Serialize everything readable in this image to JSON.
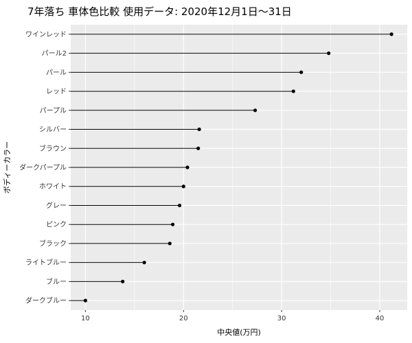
{
  "chart_data": {
    "type": "lollipop",
    "title": "7年落ち 車体色比較 使用データ: 2020年12月1日～31日",
    "xlabel": "中央値(万円)",
    "ylabel": "ボディーカラー",
    "xlim": [
      8.5,
      42.8
    ],
    "xticks": [
      10,
      20,
      30,
      40
    ],
    "xtick_labels": [
      "10",
      "20",
      "30",
      "40"
    ],
    "grid": true,
    "panel_color": "#EBEBEB",
    "categories": [
      "ワインレッド",
      "パール2",
      "パール",
      "レッド",
      "パープル",
      "シルバー",
      "ブラウン",
      "ダークパープル",
      "ホワイト",
      "グレー",
      "ピンク",
      "ブラック",
      "ライトブルー",
      "ブルー",
      "ダークブルー"
    ],
    "values": [
      41.2,
      34.8,
      32.0,
      31.2,
      27.3,
      21.6,
      21.5,
      20.4,
      20.0,
      19.6,
      18.9,
      18.6,
      16.0,
      13.8,
      10.0
    ]
  }
}
